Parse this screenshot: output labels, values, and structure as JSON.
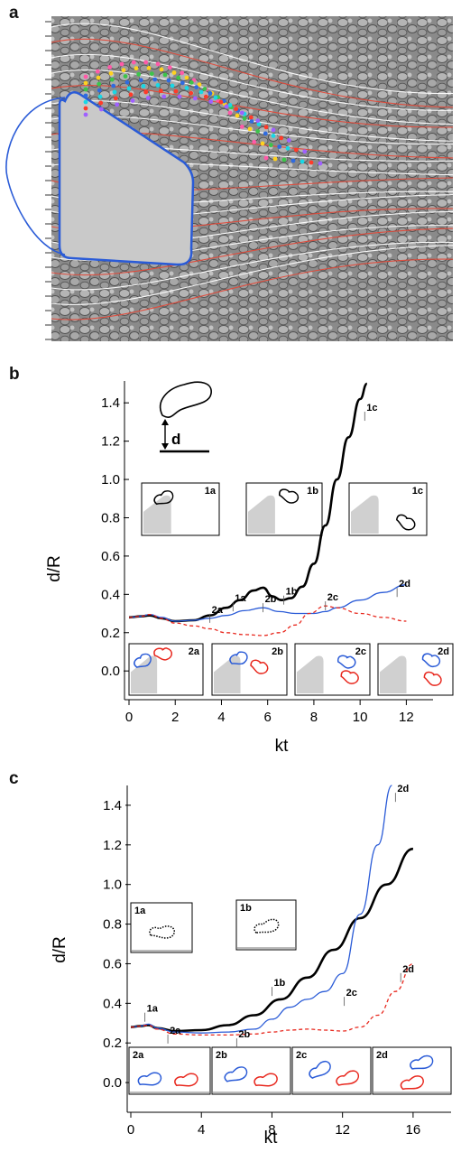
{
  "panels": {
    "a": {
      "letter": "a"
    },
    "b": {
      "letter": "b"
    },
    "c": {
      "letter": "c"
    }
  },
  "colors": {
    "black_curve": "#000000",
    "blue_curve": "#2a5bd7",
    "red_curve": "#e8281e",
    "wall_fill": "#d0d0d0",
    "white_streamline": "#ffffff",
    "red_streamline": "#e24a3a"
  },
  "inset_b_sketch": {
    "label": "d"
  },
  "chart_data": [
    {
      "panel": "a",
      "type": "other",
      "description_visible": "micrograph with streamlines around triangular obstacle, colored tracked cell positions"
    },
    {
      "panel": "b",
      "type": "line",
      "xlabel": "kt",
      "ylabel": "d/R",
      "xlim": [
        0,
        13
      ],
      "ylim": [
        -0.15,
        1.5
      ],
      "xticks": [
        0,
        2,
        4,
        6,
        8,
        10,
        12
      ],
      "yticks": [
        "0.0",
        "0.2",
        "0.4",
        "0.6",
        "0.8",
        "1.0",
        "1.2",
        "1.4"
      ],
      "series": [
        {
          "style": "solid-black-thick",
          "x": [
            0,
            0.5,
            0.9,
            1.4,
            2,
            2.8,
            3.5,
            4.2,
            4.8,
            5.4,
            5.8,
            6.2,
            6.6,
            7.0,
            7.5,
            8.0,
            8.5,
            9.0,
            9.5,
            10.0,
            10.3
          ],
          "y": [
            0.28,
            0.285,
            0.29,
            0.275,
            0.26,
            0.265,
            0.29,
            0.33,
            0.37,
            0.42,
            0.435,
            0.39,
            0.37,
            0.38,
            0.44,
            0.56,
            0.76,
            1.0,
            1.22,
            1.42,
            1.5
          ]
        },
        {
          "style": "solid-blue",
          "x": [
            0,
            0.5,
            0.9,
            1.4,
            2,
            2.8,
            3.5,
            4.2,
            5.0,
            5.8,
            6.5,
            7.2,
            8.0,
            8.5,
            9.0,
            10.0,
            11.0,
            12.0
          ],
          "y": [
            0.28,
            0.285,
            0.295,
            0.28,
            0.26,
            0.265,
            0.275,
            0.29,
            0.315,
            0.33,
            0.31,
            0.3,
            0.3,
            0.31,
            0.33,
            0.37,
            0.41,
            0.45
          ]
        },
        {
          "style": "dashed-red",
          "x": [
            0,
            0.5,
            0.9,
            1.4,
            2,
            2.8,
            3.5,
            4.2,
            5.0,
            5.8,
            6.5,
            7.2,
            7.8,
            8.5,
            9.0,
            10.0,
            11.0,
            12.0
          ],
          "y": [
            0.28,
            0.285,
            0.295,
            0.275,
            0.25,
            0.235,
            0.22,
            0.2,
            0.19,
            0.185,
            0.2,
            0.24,
            0.3,
            0.34,
            0.33,
            0.3,
            0.28,
            0.26
          ]
        }
      ],
      "annotations": [
        {
          "text": "1a",
          "x": 4.5,
          "y": 0.335
        },
        {
          "text": "1b",
          "x": 6.7,
          "y": 0.37
        },
        {
          "text": "1c",
          "x": 10.2,
          "y": 1.33
        },
        {
          "text": "2a",
          "x": 3.5,
          "y": 0.275
        },
        {
          "text": "2b",
          "x": 5.8,
          "y": 0.33
        },
        {
          "text": "2c",
          "x": 8.5,
          "y": 0.34
        },
        {
          "text": "2d",
          "x": 11.6,
          "y": 0.41
        }
      ],
      "insets_top": [
        "1a",
        "1b",
        "1c"
      ],
      "insets_bottom": [
        "2a",
        "2b",
        "2c",
        "2d"
      ]
    },
    {
      "panel": "c",
      "type": "line",
      "xlabel": "kt",
      "ylabel": "d/R",
      "xlim": [
        0,
        18
      ],
      "ylim": [
        -0.15,
        1.5
      ],
      "xticks": [
        0,
        4,
        8,
        12,
        16
      ],
      "yticks": [
        "0.0",
        "0.2",
        "0.4",
        "0.6",
        "0.8",
        "1.0",
        "1.2",
        "1.4"
      ],
      "series": [
        {
          "style": "solid-black-thick",
          "x": [
            0,
            0.5,
            1.0,
            1.5,
            2.5,
            4,
            5.5,
            7,
            8.5,
            10,
            11.5,
            13,
            14.5,
            16
          ],
          "y": [
            0.28,
            0.285,
            0.29,
            0.275,
            0.26,
            0.265,
            0.29,
            0.34,
            0.42,
            0.53,
            0.67,
            0.83,
            1.0,
            1.18
          ]
        },
        {
          "style": "solid-blue",
          "x": [
            0,
            0.5,
            1.0,
            1.5,
            2.5,
            4,
            5.5,
            7,
            8,
            9,
            10,
            11,
            12,
            13,
            14,
            14.8
          ],
          "y": [
            0.28,
            0.285,
            0.295,
            0.275,
            0.255,
            0.25,
            0.255,
            0.27,
            0.32,
            0.38,
            0.42,
            0.46,
            0.55,
            0.85,
            1.2,
            1.5
          ]
        },
        {
          "style": "dashed-red",
          "x": [
            0,
            0.5,
            1.0,
            1.5,
            2.5,
            4,
            5.5,
            7,
            8,
            9,
            10,
            11,
            12,
            13,
            14,
            15,
            16
          ],
          "y": [
            0.28,
            0.285,
            0.29,
            0.27,
            0.245,
            0.24,
            0.24,
            0.245,
            0.255,
            0.265,
            0.27,
            0.265,
            0.26,
            0.28,
            0.34,
            0.46,
            0.6
          ]
        }
      ],
      "annotations": [
        {
          "text": "1a",
          "x": 0.8,
          "y": 0.33
        },
        {
          "text": "1b",
          "x": 8.0,
          "y": 0.46
        },
        {
          "text": "2a",
          "x": 2.1,
          "y": 0.22
        },
        {
          "text": "2b",
          "x": 6.0,
          "y": 0.2
        },
        {
          "text": "2c",
          "x": 12.1,
          "y": 0.41
        },
        {
          "text": "2d",
          "x": 15.0,
          "y": 1.44
        },
        {
          "text": "2d",
          "x": 15.3,
          "y": 0.53
        }
      ],
      "insets_top": [
        "1a",
        "1b"
      ],
      "insets_bottom": [
        "2a",
        "2b",
        "2c",
        "2d"
      ]
    }
  ]
}
